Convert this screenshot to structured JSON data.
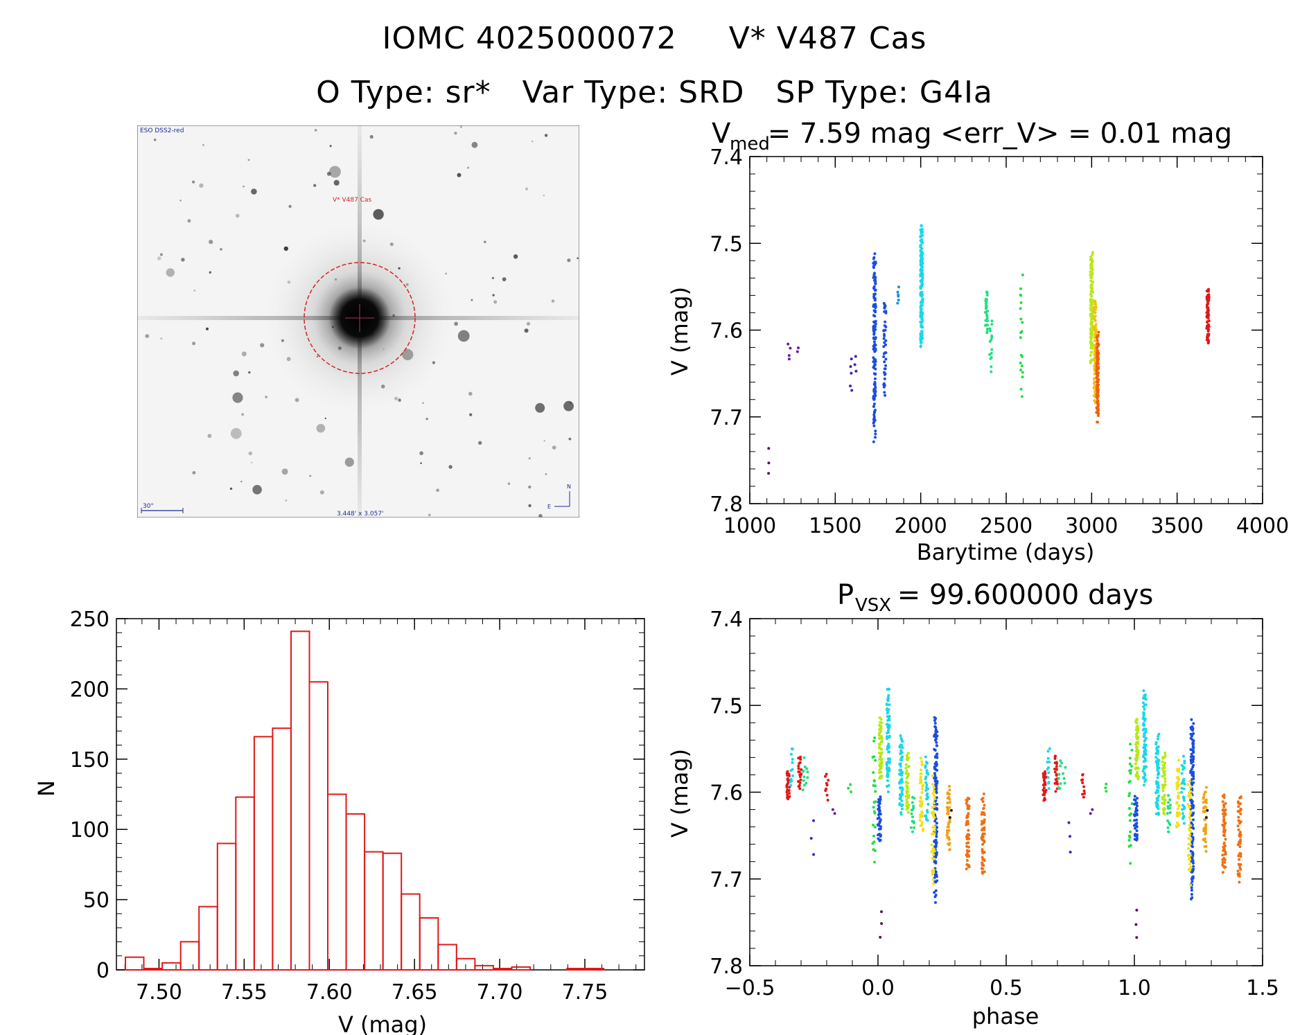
{
  "header": {
    "title_left": "IOMC 4025000072",
    "title_right": "V* V487 Cas",
    "subtitle_o": "O Type: sr*",
    "subtitle_var": "Var Type: SRD",
    "subtitle_sp": "SP Type: G4Ia"
  },
  "finder_chart": {
    "survey_label": "ESO DSS2-red",
    "target_label": "V* V487 Cas",
    "scale_label": "30\"",
    "fov_label": "3.448' x 3.057'",
    "north_label": "N",
    "east_label": "E",
    "colors": {
      "circle": "#d62020",
      "text_target": "#cc2222",
      "text_info": "#1a2a9a"
    }
  },
  "chart_data": [
    {
      "id": "light-curve",
      "type": "scatter",
      "title": "V",
      "title_sub": "med",
      "title_rest": " = 7.59 mag <err_V> = 0.01 mag",
      "xlabel": "Barytime (days)",
      "ylabel": "V (mag)",
      "xlim": [
        1000,
        4000
      ],
      "ylim": [
        7.8,
        7.4
      ],
      "xticks": [
        1000,
        1500,
        2000,
        2500,
        3000,
        3500,
        4000
      ],
      "xtick_labels": [
        "1000",
        "1500",
        "2000",
        "2500",
        "3000",
        "3500",
        "4000"
      ],
      "yticks": [
        7.4,
        7.5,
        7.6,
        7.7,
        7.8
      ],
      "ytick_labels": [
        "7.4",
        "7.5",
        "7.6",
        "7.7",
        "7.8"
      ],
      "y_inverted": true,
      "groups": [
        {
          "x": 1105,
          "y_min": 7.735,
          "y_max": 7.77,
          "n": 3,
          "color": "#5a1060"
        },
        {
          "x": 1230,
          "y_min": 7.615,
          "y_max": 7.635,
          "n": 4,
          "color": "#6a1aa8"
        },
        {
          "x": 1280,
          "y_min": 7.62,
          "y_max": 7.625,
          "n": 2,
          "color": "#6a1aa8"
        },
        {
          "x": 1590,
          "y_min": 7.63,
          "y_max": 7.675,
          "n": 5,
          "color": "#4022c8"
        },
        {
          "x": 1620,
          "y_min": 7.63,
          "y_max": 7.65,
          "n": 3,
          "color": "#4022c8"
        },
        {
          "x": 1730,
          "y_min": 7.5,
          "y_max": 7.73,
          "n": 140,
          "color": "#1a4ee0"
        },
        {
          "x": 1790,
          "y_min": 7.56,
          "y_max": 7.68,
          "n": 40,
          "color": "#1a4ee0"
        },
        {
          "x": 1870,
          "y_min": 7.55,
          "y_max": 7.57,
          "n": 6,
          "color": "#1a90e0"
        },
        {
          "x": 2005,
          "y_min": 7.475,
          "y_max": 7.625,
          "n": 160,
          "color": "#18d8e8"
        },
        {
          "x": 2385,
          "y_min": 7.555,
          "y_max": 7.605,
          "n": 30,
          "color": "#22e080"
        },
        {
          "x": 2410,
          "y_min": 7.58,
          "y_max": 7.65,
          "n": 15,
          "color": "#22e080"
        },
        {
          "x": 2590,
          "y_min": 7.53,
          "y_max": 7.69,
          "n": 20,
          "color": "#22e040"
        },
        {
          "x": 3000,
          "y_min": 7.505,
          "y_max": 7.64,
          "n": 130,
          "color": "#b8e818"
        },
        {
          "x": 3020,
          "y_min": 7.56,
          "y_max": 7.69,
          "n": 90,
          "color": "#f4c010"
        },
        {
          "x": 3035,
          "y_min": 7.6,
          "y_max": 7.71,
          "n": 120,
          "color": "#f06010"
        },
        {
          "x": 3680,
          "y_min": 7.55,
          "y_max": 7.62,
          "n": 70,
          "color": "#e01818"
        }
      ]
    },
    {
      "id": "histogram",
      "type": "bar",
      "title": "",
      "xlabel": "V (mag)",
      "ylabel": "N",
      "xlim": [
        7.475,
        7.785
      ],
      "ylim": [
        0,
        250
      ],
      "bin_width": 0.0108,
      "bin_start": 7.4803,
      "values": [
        9,
        1,
        5,
        20,
        45,
        90,
        123,
        166,
        172,
        241,
        205,
        125,
        111,
        84,
        83,
        54,
        37,
        18,
        8,
        3,
        1,
        2,
        0,
        0,
        1,
        1,
        0,
        0
      ],
      "xticks": [
        7.5,
        7.55,
        7.6,
        7.65,
        7.7,
        7.75
      ],
      "xtick_labels": [
        "7.50",
        "7.55",
        "7.60",
        "7.65",
        "7.70",
        "7.75"
      ],
      "yticks": [
        0,
        50,
        100,
        150,
        200,
        250
      ],
      "ytick_labels": [
        "0",
        "50",
        "100",
        "150",
        "200",
        "250"
      ],
      "bar_color": "#e01818"
    },
    {
      "id": "phase-curve",
      "type": "scatter",
      "title": "P",
      "title_sub": "VSX",
      "title_rest": " = 99.600000 days",
      "xlabel": "phase",
      "ylabel": "V (mag)",
      "xlim": [
        -0.5,
        1.5
      ],
      "ylim": [
        7.8,
        7.4
      ],
      "xticks": [
        -0.5,
        0.0,
        0.5,
        1.0,
        1.5
      ],
      "xtick_labels": [
        "−0.5",
        "0.0",
        "0.5",
        "1.0",
        "1.5"
      ],
      "yticks": [
        7.4,
        7.5,
        7.6,
        7.7,
        7.8
      ],
      "ytick_labels": [
        "7.4",
        "7.5",
        "7.6",
        "7.7",
        "7.8"
      ],
      "y_inverted": true,
      "period_repeat": 1.0,
      "groups": [
        {
          "x": -0.35,
          "y_min": 7.575,
          "y_max": 7.61,
          "n": 25,
          "color": "#e01818"
        },
        {
          "x": -0.335,
          "y_min": 7.545,
          "y_max": 7.6,
          "n": 12,
          "color": "#18d8e8"
        },
        {
          "x": -0.305,
          "y_min": 7.555,
          "y_max": 7.6,
          "n": 20,
          "color": "#e01818"
        },
        {
          "x": -0.29,
          "y_min": 7.56,
          "y_max": 7.6,
          "n": 8,
          "color": "#22e080"
        },
        {
          "x": -0.275,
          "y_min": 7.57,
          "y_max": 7.59,
          "n": 4,
          "color": "#22e080"
        },
        {
          "x": -0.255,
          "y_min": 7.63,
          "y_max": 7.675,
          "n": 3,
          "color": "#4022c8"
        },
        {
          "x": -0.2,
          "y_min": 7.575,
          "y_max": 7.61,
          "n": 10,
          "color": "#e01818"
        },
        {
          "x": -0.17,
          "y_min": 7.62,
          "y_max": 7.625,
          "n": 2,
          "color": "#6a1aa8"
        },
        {
          "x": -0.11,
          "y_min": 7.59,
          "y_max": 7.6,
          "n": 3,
          "color": "#22e040"
        },
        {
          "x": -0.015,
          "y_min": 7.53,
          "y_max": 7.69,
          "n": 25,
          "color": "#22e040"
        },
        {
          "x": 0.005,
          "y_min": 7.6,
          "y_max": 7.66,
          "n": 35,
          "color": "#1a4ee0"
        },
        {
          "x": 0.01,
          "y_min": 7.735,
          "y_max": 7.77,
          "n": 3,
          "color": "#5a1060"
        },
        {
          "x": 0.01,
          "y_min": 7.51,
          "y_max": 7.59,
          "n": 60,
          "color": "#b8e818"
        },
        {
          "x": 0.04,
          "y_min": 7.475,
          "y_max": 7.6,
          "n": 70,
          "color": "#18d8e8"
        },
        {
          "x": 0.09,
          "y_min": 7.53,
          "y_max": 7.63,
          "n": 60,
          "color": "#18d8e8"
        },
        {
          "x": 0.115,
          "y_min": 7.55,
          "y_max": 7.63,
          "n": 45,
          "color": "#b8e818"
        },
        {
          "x": 0.135,
          "y_min": 7.6,
          "y_max": 7.65,
          "n": 15,
          "color": "#22e080"
        },
        {
          "x": 0.17,
          "y_min": 7.56,
          "y_max": 7.65,
          "n": 40,
          "color": "#f4e010"
        },
        {
          "x": 0.19,
          "y_min": 7.555,
          "y_max": 7.64,
          "n": 30,
          "color": "#18d8e8"
        },
        {
          "x": 0.225,
          "y_min": 7.5,
          "y_max": 7.73,
          "n": 140,
          "color": "#1a4ee0"
        },
        {
          "x": 0.215,
          "y_min": 7.58,
          "y_max": 7.71,
          "n": 40,
          "color": "#f4e010"
        },
        {
          "x": 0.275,
          "y_min": 7.59,
          "y_max": 7.67,
          "n": 40,
          "color": "#f4a010"
        },
        {
          "x": 0.285,
          "y_min": 7.62,
          "y_max": 7.63,
          "n": 2,
          "color": "#222222"
        },
        {
          "x": 0.35,
          "y_min": 7.6,
          "y_max": 7.695,
          "n": 55,
          "color": "#f07010"
        },
        {
          "x": 0.41,
          "y_min": 7.6,
          "y_max": 7.705,
          "n": 55,
          "color": "#f07010"
        }
      ]
    }
  ]
}
